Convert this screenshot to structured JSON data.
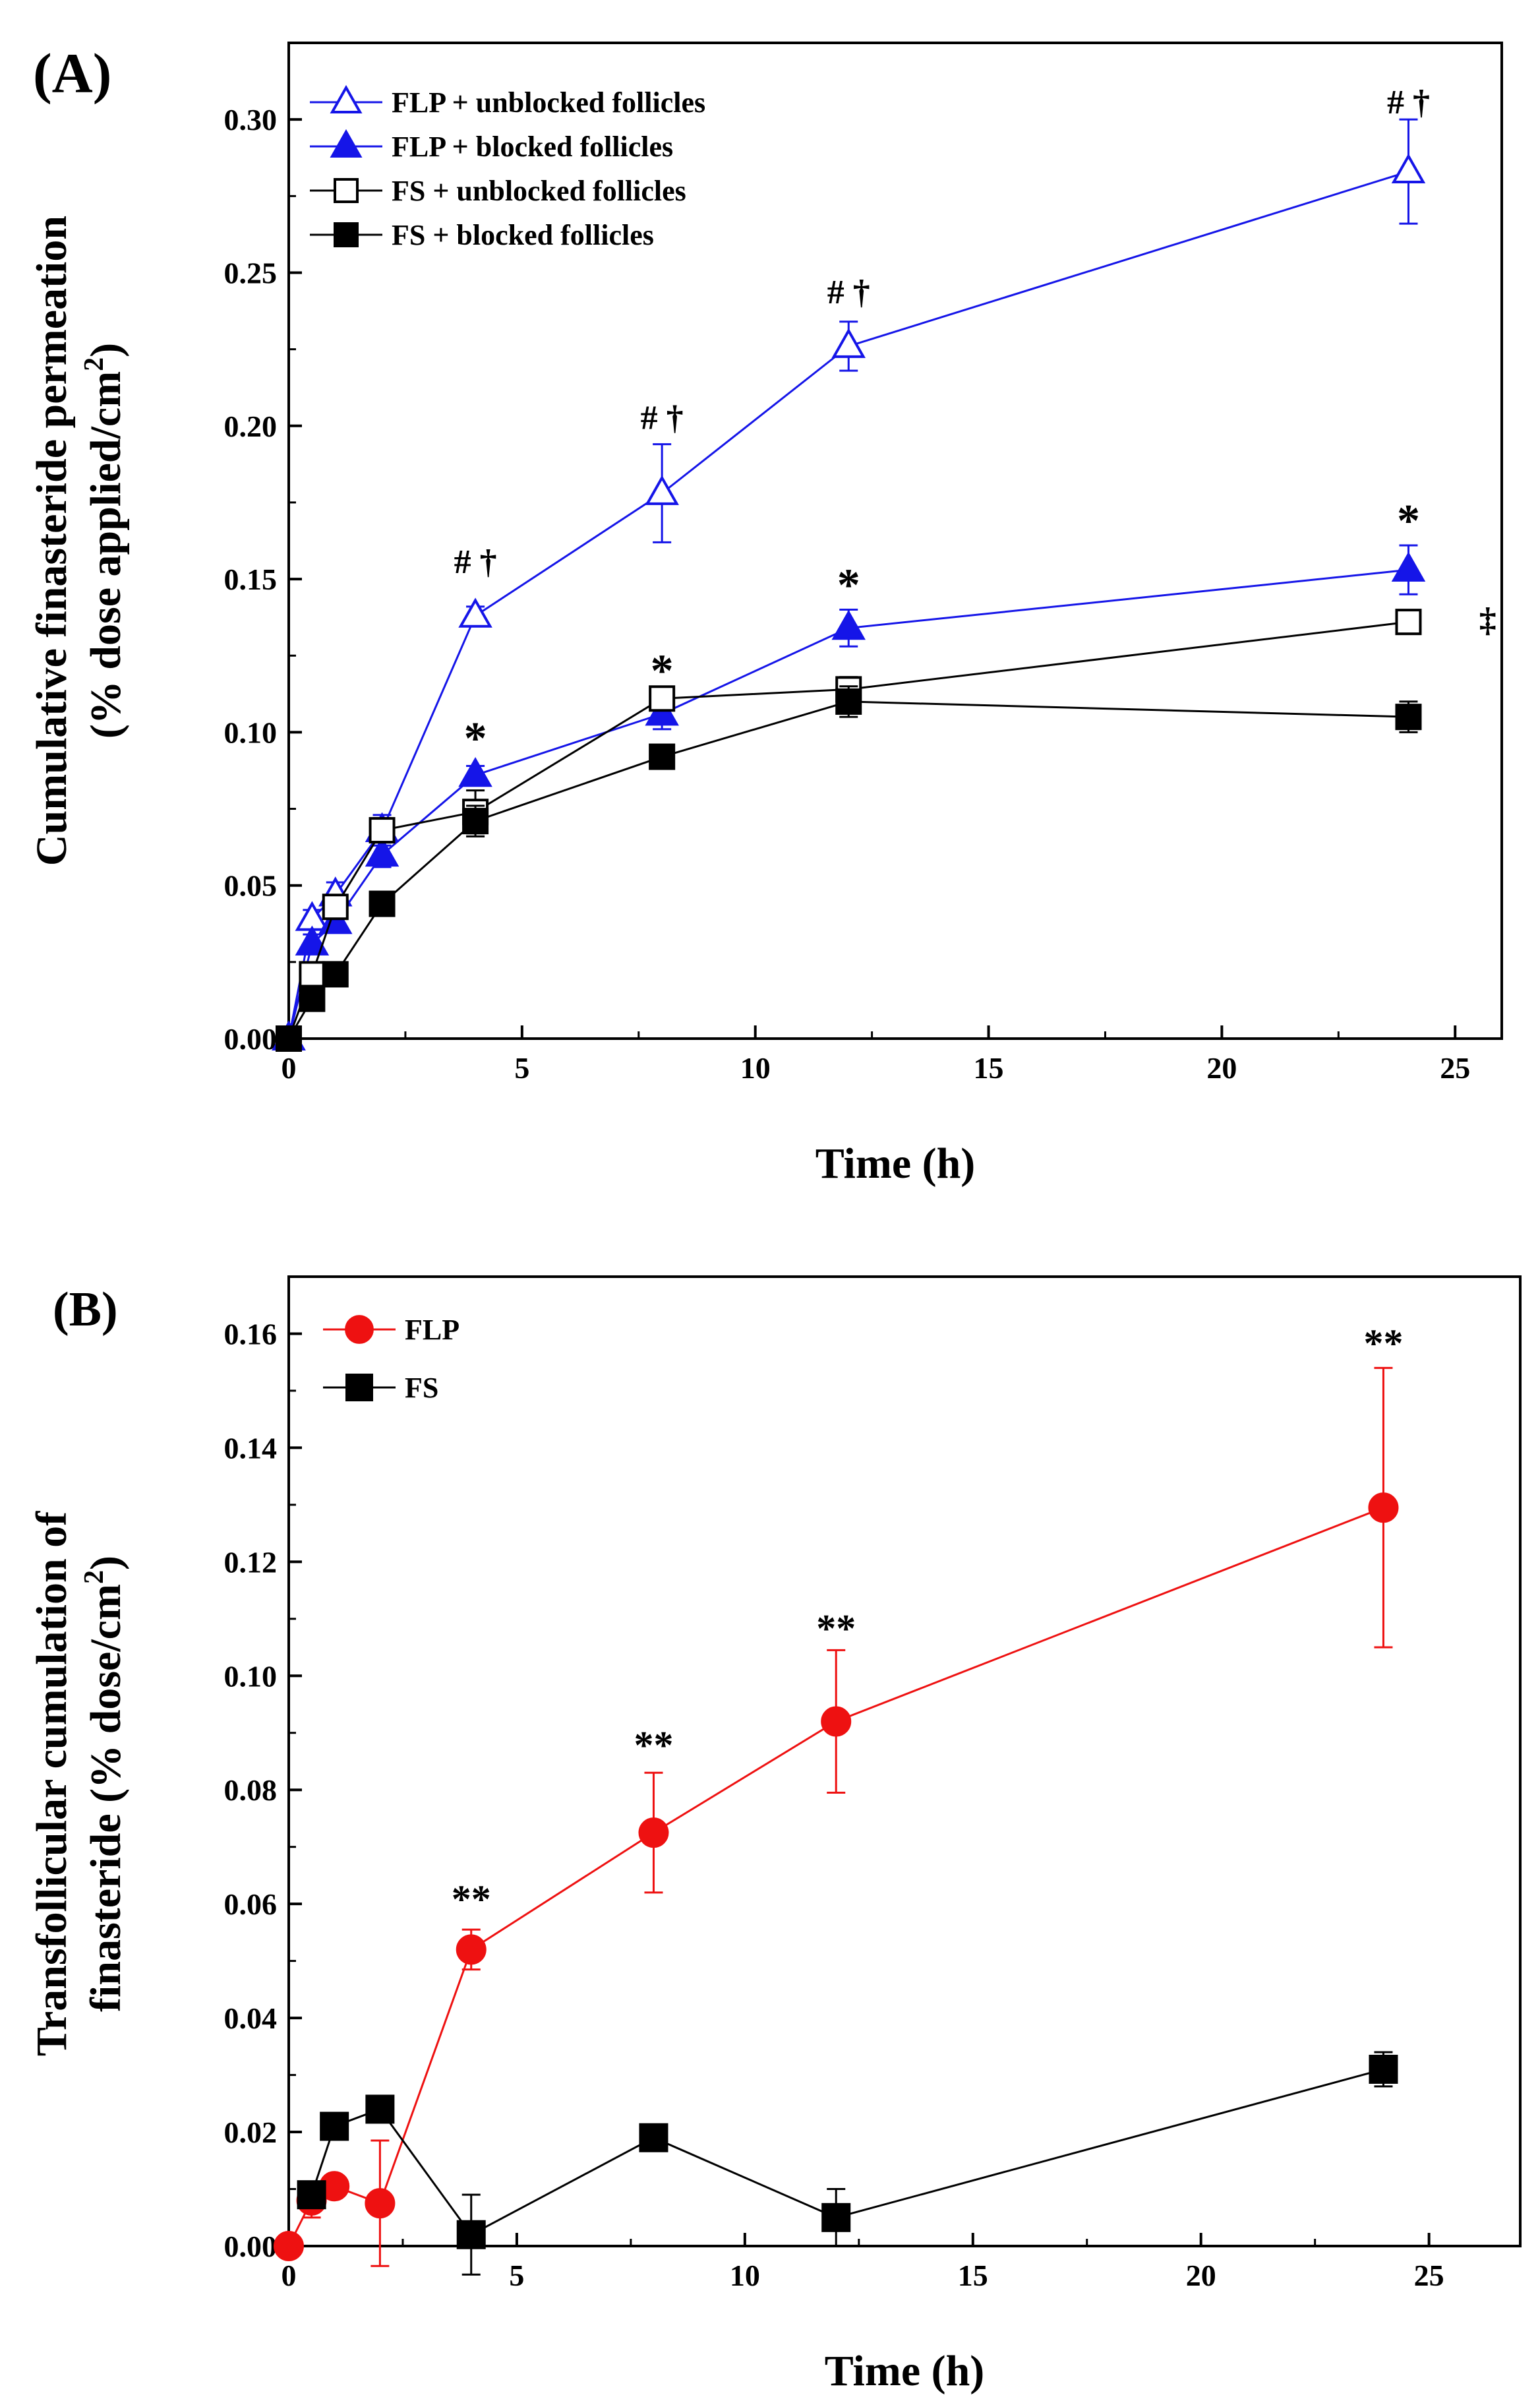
{
  "chart_data": [
    {
      "type": "line",
      "panel_label": "(A)",
      "xlabel": "Time (h)",
      "ylabel_line1": "Cumulative finasteride permeation",
      "ylabel_line2": "(% dose applied/cm",
      "ylabel_sup": "2",
      "ylabel_close": ")",
      "xlim": [
        0,
        26
      ],
      "ylim": [
        0,
        0.325
      ],
      "xticks": [
        0,
        5,
        10,
        15,
        20,
        25
      ],
      "yticks": [
        0.0,
        0.05,
        0.1,
        0.15,
        0.2,
        0.25,
        0.3
      ],
      "ytick_labels": [
        "0.00",
        "0.05",
        "0.10",
        "0.15",
        "0.20",
        "0.25",
        "0.30"
      ],
      "legend_position": "top-left",
      "series": [
        {
          "name": "FLP + unblocked follicles",
          "color": "#1515e8",
          "marker": "triangle-open",
          "x": [
            0,
            0.5,
            1,
            2,
            4,
            8,
            12,
            24
          ],
          "y": [
            0.0,
            0.039,
            0.047,
            0.068,
            0.138,
            0.178,
            0.226,
            0.283
          ],
          "err": [
            0,
            0.003,
            0.004,
            0.005,
            0.003,
            0.016,
            0.008,
            0.017
          ]
        },
        {
          "name": "FLP + blocked follicles",
          "color": "#1515e8",
          "marker": "triangle-filled",
          "x": [
            0,
            0.5,
            1,
            2,
            4,
            8,
            12,
            24
          ],
          "y": [
            0.0,
            0.031,
            0.038,
            0.06,
            0.086,
            0.106,
            0.134,
            0.153
          ],
          "err": [
            0,
            0.003,
            0.003,
            0.004,
            0.003,
            0.005,
            0.006,
            0.008
          ]
        },
        {
          "name": "FS + unblocked follicles",
          "color": "#000000",
          "marker": "square-open",
          "x": [
            0,
            0.5,
            1,
            2,
            4,
            8,
            12,
            24
          ],
          "y": [
            0.0,
            0.021,
            0.043,
            0.068,
            0.074,
            0.111,
            0.114,
            0.136
          ],
          "err": [
            0,
            0.003,
            0.003,
            0.004,
            0.007,
            0.003,
            0.004,
            0.002
          ]
        },
        {
          "name": "FS + blocked follicles",
          "color": "#000000",
          "marker": "square-filled",
          "x": [
            0,
            0.5,
            1,
            2,
            4,
            8,
            12,
            24
          ],
          "y": [
            0.0,
            0.013,
            0.021,
            0.044,
            0.071,
            0.092,
            0.11,
            0.105
          ],
          "err": [
            0,
            0.002,
            0.002,
            0.002,
            0.005,
            0.003,
            0.005,
            0.005
          ]
        }
      ],
      "annotations": [
        {
          "text": "# †",
          "x": 4,
          "y": 0.152
        },
        {
          "text": "# †",
          "x": 8,
          "y": 0.199
        },
        {
          "text": "# †",
          "x": 12,
          "y": 0.24
        },
        {
          "text": "# †",
          "x": 24,
          "y": 0.302
        },
        {
          "text": "*",
          "x": 4,
          "y": 0.093
        },
        {
          "text": "*",
          "x": 8,
          "y": 0.115
        },
        {
          "text": "*",
          "x": 12,
          "y": 0.143
        },
        {
          "text": "*",
          "x": 24,
          "y": 0.164
        },
        {
          "text": "‡",
          "x": 25.7,
          "y": 0.133
        }
      ]
    },
    {
      "type": "line",
      "panel_label": "(B)",
      "xlabel": "Time (h)",
      "ylabel_line1": "Transfollicular cumulation of",
      "ylabel_line2": "finasteride (% dose/cm",
      "ylabel_sup": "2",
      "ylabel_close": ")",
      "xlim": [
        0,
        27
      ],
      "ylim": [
        0,
        0.17
      ],
      "xticks": [
        0,
        5,
        10,
        15,
        20,
        25
      ],
      "yticks": [
        0.0,
        0.02,
        0.04,
        0.06,
        0.08,
        0.1,
        0.12,
        0.14,
        0.16
      ],
      "ytick_labels": [
        "0.00",
        "0.02",
        "0.04",
        "0.06",
        "0.08",
        "0.10",
        "0.12",
        "0.14",
        "0.16"
      ],
      "legend_position": "top-left",
      "series": [
        {
          "name": "FLP",
          "color": "#ee1111",
          "marker": "circle-filled",
          "x": [
            0,
            0.5,
            1,
            2,
            4,
            8,
            12,
            24
          ],
          "y": [
            0.0,
            0.008,
            0.0105,
            0.0075,
            0.052,
            0.0725,
            0.092,
            0.1295
          ],
          "err": [
            0,
            0.003,
            0.001,
            0.011,
            0.0035,
            0.0105,
            0.0125,
            0.0245
          ]
        },
        {
          "name": "FS",
          "color": "#000000",
          "marker": "square-filled",
          "x": [
            0.5,
            1,
            2,
            4,
            8,
            12,
            24
          ],
          "y": [
            0.009,
            0.021,
            0.024,
            0.002,
            0.019,
            0.005,
            0.031
          ],
          "err": [
            0.002,
            0.001,
            0.002,
            0.007,
            0.001,
            0.005,
            0.003
          ]
        }
      ],
      "annotations": [
        {
          "text": "**",
          "x": 4,
          "y": 0.0585
        },
        {
          "text": "**",
          "x": 8,
          "y": 0.0855
        },
        {
          "text": "**",
          "x": 12,
          "y": 0.106
        },
        {
          "text": "**",
          "x": 24,
          "y": 0.156
        }
      ]
    }
  ]
}
